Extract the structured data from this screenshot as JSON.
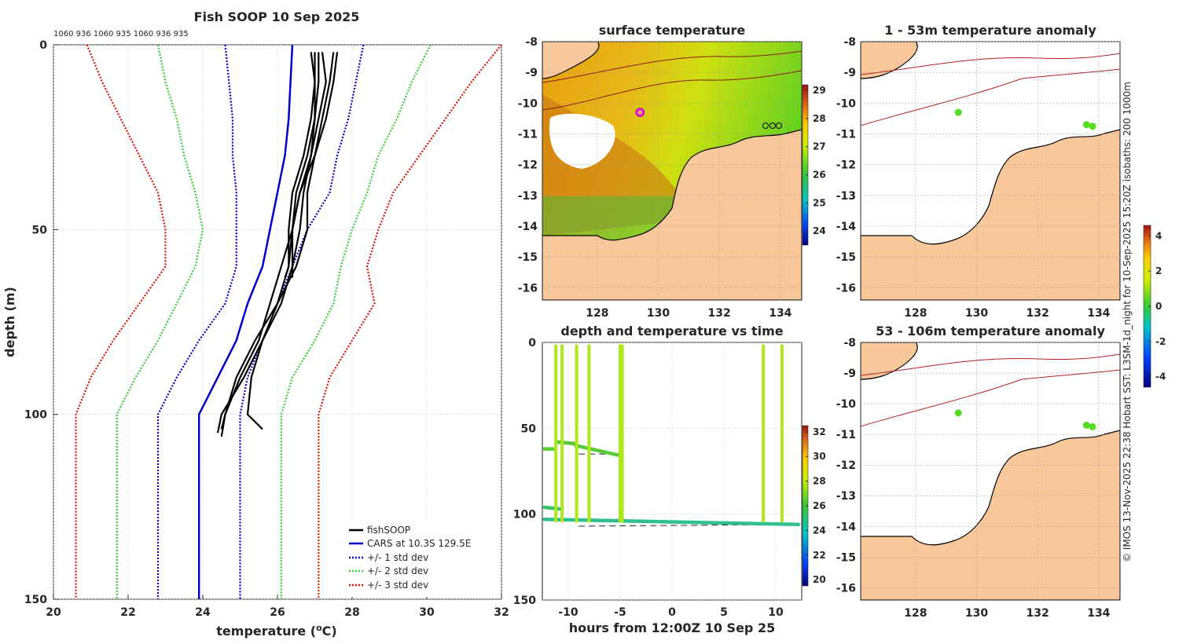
{
  "chart_data": [
    {
      "type": "line",
      "title": "Fish SOOP 10 Sep 2025",
      "header_numbers": "1060 936 1060 935 1060 936 935",
      "xlabel": "temperature (°C)",
      "xlabel_main": "temperature (",
      "xlabel_unit": "C)",
      "ylabel": "depth (m)",
      "xlim": [
        20,
        32
      ],
      "ylim": [
        150,
        0
      ],
      "xticks": [
        "20",
        "22",
        "24",
        "26",
        "28",
        "30",
        "32"
      ],
      "yticks": [
        "0",
        "50",
        "100",
        "150"
      ],
      "legend_position": "bottom-right",
      "legend": [
        "fishSOOP",
        "CARS at 10.3S 129.5E",
        "+/- 1 std dev",
        "+/- 2 std dev",
        "+/- 3 std dev"
      ],
      "colors": {
        "fishSOOP": "#000000",
        "cars": "#0000cc",
        "std1": "#0000cc",
        "std2": "#33cc33",
        "std3": "#dd1100"
      },
      "depths": [
        0,
        10,
        20,
        30,
        40,
        50,
        60,
        70,
        80,
        90,
        100,
        150
      ],
      "cars_mean": [
        26.4,
        26.35,
        26.3,
        26.2,
        26.0,
        25.8,
        25.6,
        25.2,
        24.9,
        24.4,
        23.9,
        23.9
      ],
      "std_bands": [
        {
          "name": "+/- 1 std dev",
          "minus": [
            24.6,
            24.7,
            24.8,
            24.8,
            24.9,
            24.9,
            24.9,
            24.6,
            23.9,
            23.3,
            22.8,
            22.8
          ],
          "plus": [
            28.3,
            28.1,
            27.9,
            27.6,
            27.4,
            26.8,
            26.4,
            26.0,
            25.6,
            25.2,
            25.0,
            25.0
          ]
        },
        {
          "name": "+/- 2 std dev",
          "minus": [
            22.8,
            23.0,
            23.3,
            23.5,
            23.8,
            24.0,
            23.8,
            23.3,
            22.8,
            22.2,
            21.7,
            21.7
          ],
          "plus": [
            30.1,
            29.6,
            29.2,
            28.7,
            28.4,
            28.0,
            27.7,
            27.5,
            27.0,
            26.4,
            26.1,
            26.1
          ]
        },
        {
          "name": "+/- 3 std dev",
          "minus": [
            20.9,
            21.3,
            21.8,
            22.3,
            22.8,
            23.0,
            23.0,
            22.3,
            21.6,
            21.0,
            20.6,
            20.6
          ],
          "plus": [
            32.0,
            31.2,
            30.5,
            29.8,
            29.1,
            28.7,
            28.4,
            28.6,
            28.0,
            27.4,
            27.1,
            27.1
          ]
        }
      ],
      "fishsoop_profiles": [
        {
          "depths": [
            2,
            10,
            20,
            30,
            40,
            50,
            60,
            70,
            80,
            90,
            100,
            104
          ],
          "temps": [
            27.6,
            27.5,
            27.3,
            27.0,
            26.6,
            26.4,
            26.1,
            25.8,
            25.5,
            25.0,
            24.6,
            24.5
          ]
        },
        {
          "depths": [
            2,
            10,
            20,
            30,
            40,
            50,
            60,
            70,
            80,
            90,
            100,
            105
          ],
          "temps": [
            27.2,
            27.3,
            27.1,
            26.9,
            26.7,
            26.6,
            26.4,
            26.1,
            25.6,
            25.1,
            24.5,
            24.4
          ]
        },
        {
          "depths": [
            2,
            10,
            20,
            30,
            40,
            50,
            60,
            70,
            80,
            90,
            100,
            106
          ],
          "temps": [
            27.5,
            27.4,
            27.2,
            27.0,
            26.8,
            26.8,
            26.5,
            26.0,
            25.4,
            24.9,
            24.6,
            24.5
          ]
        },
        {
          "depths": [
            2,
            10,
            20,
            30,
            40,
            50,
            60,
            70,
            80,
            90,
            100,
            104
          ],
          "temps": [
            26.9,
            27.0,
            27.0,
            26.9,
            26.6,
            26.4,
            26.3,
            26.0,
            25.6,
            25.3,
            25.2,
            25.6
          ]
        },
        {
          "depths": [
            2,
            10,
            20,
            30,
            40,
            50,
            60,
            63
          ],
          "temps": [
            27.0,
            27.0,
            26.9,
            26.7,
            26.4,
            26.3,
            26.3,
            26.2
          ]
        },
        {
          "depths": [
            2,
            10,
            20,
            30,
            40,
            50,
            60,
            63
          ],
          "temps": [
            27.1,
            27.1,
            27.0,
            26.8,
            26.5,
            26.4,
            26.4,
            26.4
          ]
        }
      ]
    },
    {
      "type": "heatmap",
      "title": "surface temperature",
      "xticks": [
        "128",
        "130",
        "132",
        "134"
      ],
      "yticks": [
        "-8",
        "-9",
        "-10",
        "-11",
        "-12",
        "-13",
        "-14",
        "-15",
        "-16"
      ],
      "xlim": [
        126.2,
        134.7
      ],
      "ylim": [
        -16.4,
        -8
      ],
      "colorbar_ticks": [
        "24",
        "25",
        "26",
        "27",
        "28",
        "29"
      ],
      "colorbar_range": [
        23.5,
        29.2
      ],
      "vessel_position": {
        "lon": 129.4,
        "lat": -10.3
      }
    },
    {
      "type": "heatmap",
      "title": "1 - 53m temperature anomaly",
      "xticks": [
        "128",
        "130",
        "132",
        "134"
      ],
      "yticks": [
        "-8",
        "-9",
        "-10",
        "-11",
        "-12",
        "-13",
        "-14",
        "-15",
        "-16"
      ],
      "xlim": [
        126.2,
        134.7
      ],
      "ylim": [
        -16.4,
        -8
      ],
      "points": [
        {
          "lon": 129.4,
          "lat": -10.3
        },
        {
          "lon": 133.6,
          "lat": -10.7
        },
        {
          "lon": 133.8,
          "lat": -10.75
        }
      ]
    },
    {
      "type": "scatter",
      "title": "depth and temperature vs time",
      "xlabel": "hours from 12:00Z 10 Sep 25",
      "xticks": [
        "-10",
        "-5",
        "0",
        "5",
        "10"
      ],
      "yticks": [
        "0",
        "50",
        "100",
        "150"
      ],
      "xlim": [
        -12.5,
        12.5
      ],
      "ylim": [
        150,
        0
      ],
      "colorbar_ticks": [
        "20",
        "22",
        "24",
        "26",
        "28",
        "30",
        "32"
      ],
      "colorbar_range": [
        19.5,
        32.5
      ],
      "casts": [
        -11.2,
        -10.6,
        -9.2,
        -8.0,
        -5.0,
        -4.8,
        8.8,
        10.6
      ],
      "tracks": [
        {
          "t": [
            -12.3,
            -11.4
          ],
          "d": [
            62,
            62
          ],
          "temp": 26
        },
        {
          "t": [
            -11.0,
            -9.3
          ],
          "d": [
            58,
            59
          ],
          "temp": 26.2
        },
        {
          "t": [
            -9.3,
            -4.9
          ],
          "d": [
            60,
            66
          ],
          "temp": 26
        },
        {
          "t": [
            -12.3,
            -10.8
          ],
          "d": [
            96,
            97
          ],
          "temp": 25.4
        },
        {
          "t": [
            -12.3,
            12.2
          ],
          "d": [
            103,
            106
          ],
          "temp": 24.9
        }
      ],
      "reference_lines": [
        {
          "t": [
            -9.0,
            -5.0
          ],
          "d": [
            65,
            65
          ]
        },
        {
          "t": [
            -12.3,
            -4.8
          ],
          "d": [
            103,
            103
          ]
        },
        {
          "t": [
            -9.0,
            12.0
          ],
          "d": [
            107,
            106
          ]
        }
      ]
    },
    {
      "type": "heatmap",
      "title": "53 - 106m temperature anomaly",
      "xticks": [
        "128",
        "130",
        "132",
        "134"
      ],
      "yticks": [
        "-8",
        "-9",
        "-10",
        "-11",
        "-12",
        "-13",
        "-14",
        "-15",
        "-16"
      ],
      "xlim": [
        126.2,
        134.7
      ],
      "ylim": [
        -16.4,
        -8
      ],
      "points": [
        {
          "lon": 129.4,
          "lat": -10.3
        },
        {
          "lon": 133.6,
          "lat": -10.7
        },
        {
          "lon": 133.8,
          "lat": -10.75
        }
      ],
      "colorbar_ticks": [
        "-4",
        "-2",
        "0",
        "2",
        "4"
      ],
      "colorbar_range": [
        -4.6,
        4.6
      ]
    }
  ],
  "credit": "© IMOS 13-Nov-2025 22:38 Hobart SST: L3SM-1d_night for 10-Sep-2025 15:20Z isobaths: 200  1000m"
}
